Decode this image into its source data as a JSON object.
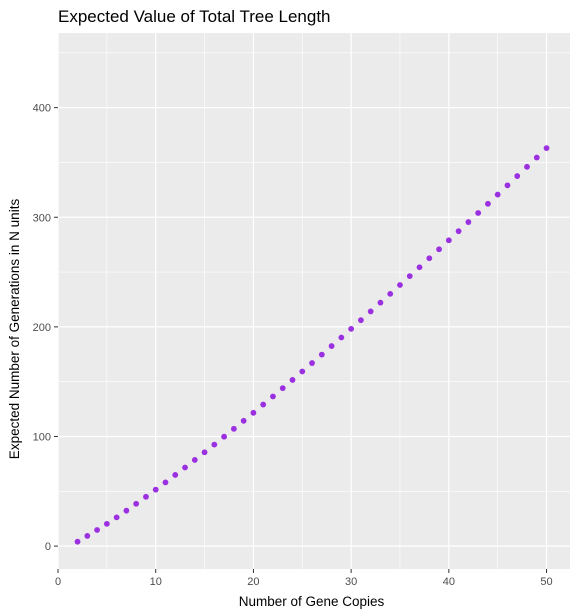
{
  "chart_data": {
    "type": "scatter",
    "title": "Expected Value of Total Tree Length",
    "xlabel": "Number of Gene Copies",
    "ylabel": "Expected Number of Generations in N units",
    "xlim": [
      0,
      52.4
    ],
    "ylim": [
      -20.9,
      468.1
    ],
    "xticks": [
      0,
      10,
      20,
      30,
      40,
      50
    ],
    "yticks": [
      0,
      100,
      200,
      300,
      400
    ],
    "grid": true,
    "background": "#ebebeb",
    "grid_color": "#ffffff",
    "point_color": "#9b30e0",
    "series": [
      {
        "x": [
          2,
          3,
          4,
          5,
          6,
          7,
          8,
          9,
          10,
          11,
          12,
          13,
          14,
          15,
          16,
          17,
          18,
          19,
          20,
          21,
          22,
          23,
          24,
          25,
          26,
          27,
          28,
          29,
          30,
          31,
          32,
          33,
          34,
          35,
          36,
          37,
          38,
          39,
          40,
          41,
          42,
          43,
          44,
          45,
          46,
          47,
          48,
          49,
          50
        ],
        "y": [
          4.0,
          9.3,
          14.7,
          20.3,
          26.2,
          32.3,
          38.6,
          45.0,
          51.5,
          58.1,
          64.9,
          71.7,
          78.6,
          85.6,
          92.6,
          99.8,
          107.0,
          114.3,
          121.6,
          129.1,
          136.5,
          144.1,
          151.6,
          159.3,
          167.0,
          174.7,
          182.5,
          190.3,
          198.2,
          206.1,
          214.1,
          222.1,
          230.1,
          238.2,
          246.3,
          254.4,
          262.6,
          270.8,
          279.0,
          287.3,
          295.6,
          303.9,
          312.3,
          320.7,
          329.1,
          337.6,
          346.0,
          354.5,
          363.1
        ]
      }
    ]
  }
}
